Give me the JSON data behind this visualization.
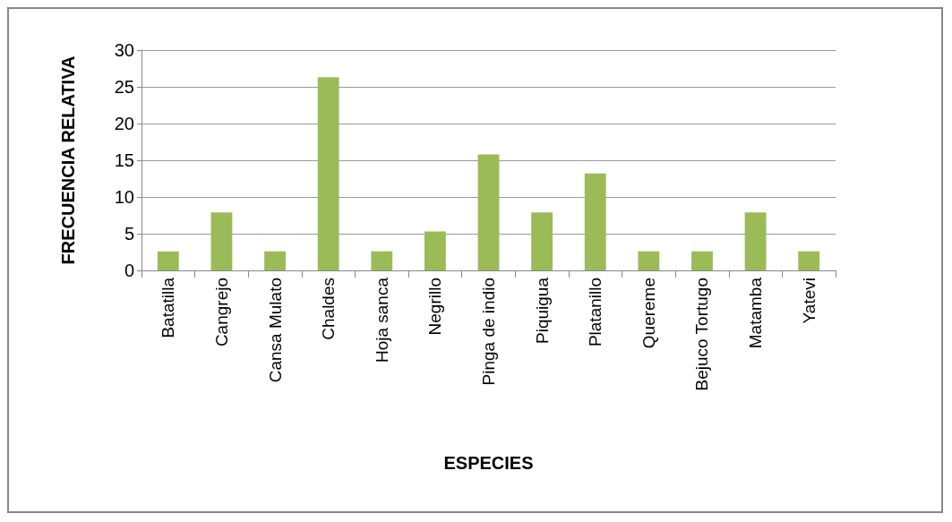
{
  "chart_data": {
    "type": "bar",
    "xlabel": "ESPECIES",
    "ylabel": "FRECUENCIA RELATIVA",
    "categories": [
      "Batatilla",
      "Cangrejo",
      "Cansa Mulato",
      "Chaldes",
      "Hoja sanca",
      "Negrillo",
      "Pinga de indio",
      "Piquigua",
      "Platanillo",
      "Quereme",
      "Bejuco Tortugo",
      "Matamba",
      "Yatevi"
    ],
    "values": [
      2.6,
      7.9,
      2.6,
      26.3,
      2.6,
      5.3,
      15.8,
      7.9,
      13.2,
      2.6,
      2.6,
      7.9,
      2.6
    ],
    "color": "#9bbb59",
    "ylim": [
      0,
      30
    ],
    "yticks": [
      0,
      5,
      10,
      15,
      20,
      25,
      30
    ],
    "grid": "y"
  }
}
